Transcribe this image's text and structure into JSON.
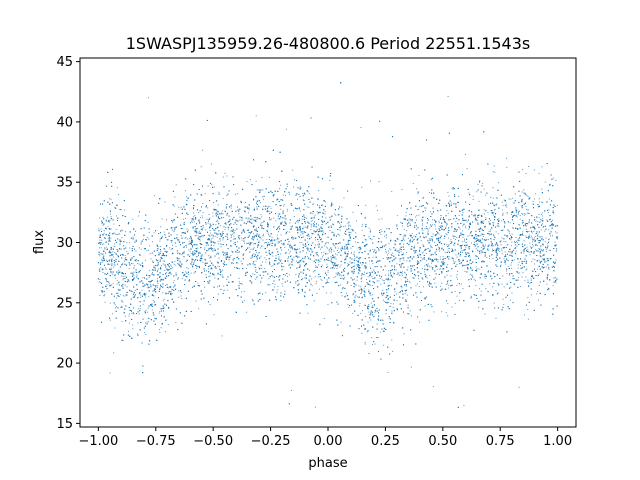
{
  "chart_data": {
    "type": "scatter",
    "title": "1SWASPJ135959.26-480800.6 Period 22551.1543s",
    "xlabel": "phase",
    "ylabel": "flux",
    "xlim": [
      -1.08,
      1.08
    ],
    "ylim": [
      14.7,
      45.3
    ],
    "xticks": [
      -1.0,
      -0.75,
      -0.5,
      -0.25,
      0.0,
      0.25,
      0.5,
      0.75,
      1.0
    ],
    "xtick_labels": [
      "−1.00",
      "−0.75",
      "−0.50",
      "−0.25",
      "0.00",
      "0.25",
      "0.50",
      "0.75",
      "1.00"
    ],
    "yticks": [
      15,
      20,
      25,
      30,
      35,
      40,
      45
    ],
    "ytick_labels": [
      "15",
      "20",
      "25",
      "30",
      "35",
      "40",
      "45"
    ],
    "grid": false,
    "marker_color": "#1f77b4",
    "x_range": [
      -1.0,
      1.0
    ],
    "baseline_flux": 30.0,
    "dip_phases": [
      -0.8,
      0.2
    ],
    "dip_depth_flux": 3.5,
    "scatter_sigma_flux": 2.4,
    "outlier_range": [
      16,
      44
    ]
  }
}
